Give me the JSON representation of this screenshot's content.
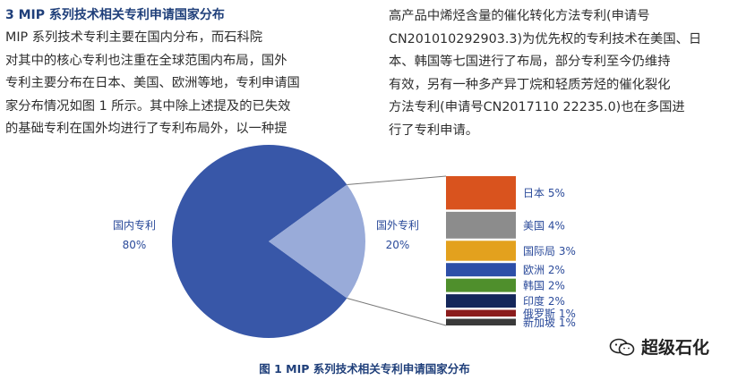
{
  "section_heading": "3 MIP 系列技术相关专利申请国家分布",
  "left_paragraph": [
    "MIP 系列技术专利主要在国内分布，而石科院",
    "对其中的核心专利也注重在全球范围内布局，国外",
    "专利主要分布在日本、美国、欧洲等地，专利申请国",
    "家分布情况如图 1 所示。其中除上述提及的已失效",
    "的基础专利在国外均进行了专利布局外，以一种提"
  ],
  "right_paragraph": [
    "高产品中烯烃含量的催化转化方法专利(申请号",
    "CN201010292903.3)为优先权的专利技术在美国、日",
    "本、韩国等七国进行了布局，部分专利至今仍维持",
    "有效，另有一种多产异丁烷和轻质芳烃的催化裂化",
    "方法专利(申请号CN2017110  22235.0)也在多国进",
    "行了专利申请。"
  ],
  "chart_data": {
    "type": "bar-of-pie",
    "pie": [
      {
        "label": "国内专利",
        "value_label": "80%",
        "value": 80,
        "color": "#3857a8"
      },
      {
        "label": "国外专利",
        "value_label": "20%",
        "value": 20,
        "color": "#99abd9"
      }
    ],
    "breakdown": [
      {
        "label": "日本 5%",
        "value": 5,
        "color": "#d9531e"
      },
      {
        "label": "美国 4%",
        "value": 4,
        "color": "#8c8c8c"
      },
      {
        "label": "国际局 3%",
        "value": 3,
        "color": "#e3a11e"
      },
      {
        "label": "欧洲 2%",
        "value": 2,
        "color": "#2d4fa8"
      },
      {
        "label": "韩国 2%",
        "value": 2,
        "color": "#4f8f2c"
      },
      {
        "label": "印度 2%",
        "value": 2,
        "color": "#14275a"
      },
      {
        "label": "俄罗斯 1%",
        "value": 1,
        "color": "#8b1c1c"
      },
      {
        "label": "新加坡 1%",
        "value": 1,
        "color": "#3a3a3a"
      }
    ]
  },
  "caption": "图 1 MIP 系列技术相关专利申请国家分布",
  "watermark": {
    "text": "超级石化",
    "icon": "wechat-icon"
  }
}
